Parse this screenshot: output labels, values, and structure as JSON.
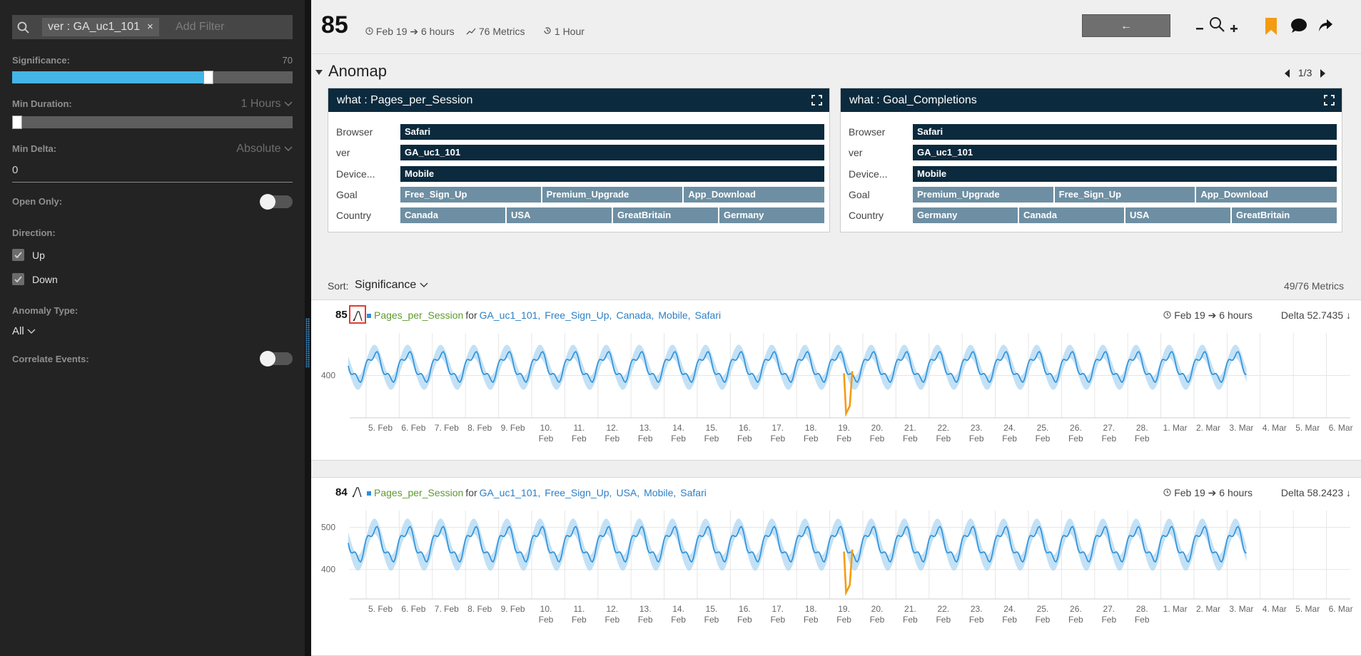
{
  "sidebar": {
    "filter_chip": "ver : GA_uc1_101",
    "filter_chip_remove": "×",
    "add_filter_placeholder": "Add Filter",
    "significance_label": "Significance:",
    "significance_value": "70",
    "significance_fraction": 0.7,
    "min_duration_label": "Min Duration:",
    "min_duration_value": "1 Hours",
    "min_delta_label": "Min Delta:",
    "min_delta_mode": "Absolute",
    "min_delta_value": "0",
    "open_only_label": "Open Only:",
    "direction_label": "Direction:",
    "direction_up": "Up",
    "direction_down": "Down",
    "anomaly_type_label": "Anomaly Type:",
    "anomaly_type_value": "All",
    "correlate_label": "Correlate Events:"
  },
  "header": {
    "score": "85",
    "time": "Feb 19 ➔ 6 hours",
    "metrics": "76 Metrics",
    "window": "1 Hour",
    "back_label": "←"
  },
  "anomap": {
    "title": "Anomap",
    "pager": "1/3",
    "cards": [
      {
        "title": "what : Pages_per_Session",
        "rows": [
          {
            "name": "Browser",
            "values": [
              "Safari"
            ],
            "style": "dark"
          },
          {
            "name": "ver",
            "values": [
              "GA_uc1_101"
            ],
            "style": "dark"
          },
          {
            "name": "Device...",
            "values": [
              "Mobile"
            ],
            "style": "dark"
          },
          {
            "name": "Goal",
            "values": [
              "Free_Sign_Up",
              "Premium_Upgrade",
              "App_Download"
            ],
            "style": "light"
          },
          {
            "name": "Country",
            "values": [
              "Canada",
              "USA",
              "GreatBritain",
              "Germany"
            ],
            "style": "light"
          }
        ]
      },
      {
        "title": "what : Goal_Completions",
        "rows": [
          {
            "name": "Browser",
            "values": [
              "Safari"
            ],
            "style": "dark"
          },
          {
            "name": "ver",
            "values": [
              "GA_uc1_101"
            ],
            "style": "dark"
          },
          {
            "name": "Device...",
            "values": [
              "Mobile"
            ],
            "style": "dark"
          },
          {
            "name": "Goal",
            "values": [
              "Premium_Upgrade",
              "Free_Sign_Up",
              "App_Download"
            ],
            "style": "light"
          },
          {
            "name": "Country",
            "values": [
              "Germany",
              "Canada",
              "USA",
              "GreatBritain"
            ],
            "style": "light"
          }
        ]
      }
    ]
  },
  "sort": {
    "label": "Sort:",
    "value": "Significance",
    "count": "49/76 Metrics"
  },
  "metrics": [
    {
      "score": "85",
      "metric": "Pages_per_Session",
      "for": "for",
      "dims": [
        "GA_uc1_101,",
        "Free_Sign_Up,",
        "Canada,",
        "Mobile,",
        "Safari"
      ],
      "time": "Feb 19 ➔ 6 hours",
      "delta": "Delta 52.7435 ↓"
    },
    {
      "score": "84",
      "metric": "Pages_per_Session",
      "for": "for",
      "dims": [
        "GA_uc1_101,",
        "Free_Sign_Up,",
        "USA,",
        "Mobile,",
        "Safari"
      ],
      "time": "Feb 19 ➔ 6 hours",
      "delta": "Delta 58.2423 ↓"
    }
  ],
  "chart_data": [
    {
      "type": "line",
      "x_ticks": [
        "5. Feb",
        "6. Feb",
        "7. Feb",
        "8. Feb",
        "9. Feb",
        "10. Feb",
        "11. Feb",
        "12. Feb",
        "13. Feb",
        "14. Feb",
        "15. Feb",
        "16. Feb",
        "17. Feb",
        "18. Feb",
        "19. Feb",
        "20. Feb",
        "21. Feb",
        "22. Feb",
        "23. Feb",
        "24. Feb",
        "25. Feb",
        "26. Feb",
        "27. Feb",
        "28. Feb",
        "1. Mar",
        "2. Mar",
        "3. Mar",
        "4. Mar",
        "5. Mar",
        "6. Mar"
      ],
      "y_ticks": [
        400
      ],
      "ylim": [
        300,
        500
      ],
      "baseline": 420,
      "amplitude": 30,
      "period_days": 1,
      "anomaly": {
        "start": "19. Feb",
        "duration_hours": 6,
        "min_value": 310
      },
      "series_color": "#2b90d9",
      "band_color": "#a9d4f2",
      "anomaly_color": "#f39c12"
    },
    {
      "type": "line",
      "x_ticks": [
        "5. Feb",
        "6. Feb",
        "7. Feb",
        "8. Feb",
        "9. Feb",
        "10. Feb",
        "11. Feb",
        "12. Feb",
        "13. Feb",
        "14. Feb",
        "15. Feb",
        "16. Feb",
        "17. Feb",
        "18. Feb",
        "19. Feb",
        "20. Feb",
        "21. Feb",
        "22. Feb",
        "23. Feb",
        "24. Feb",
        "25. Feb",
        "26. Feb",
        "27. Feb",
        "28. Feb",
        "1. Mar",
        "2. Mar",
        "3. Mar",
        "4. Mar",
        "5. Mar",
        "6. Mar"
      ],
      "y_ticks": [
        400,
        500
      ],
      "ylim": [
        330,
        540
      ],
      "baseline": 460,
      "amplitude": 35,
      "period_days": 1,
      "anomaly": {
        "start": "19. Feb",
        "duration_hours": 6,
        "min_value": 345
      },
      "series_color": "#2b90d9",
      "band_color": "#a9d4f2",
      "anomaly_color": "#f39c12"
    }
  ]
}
